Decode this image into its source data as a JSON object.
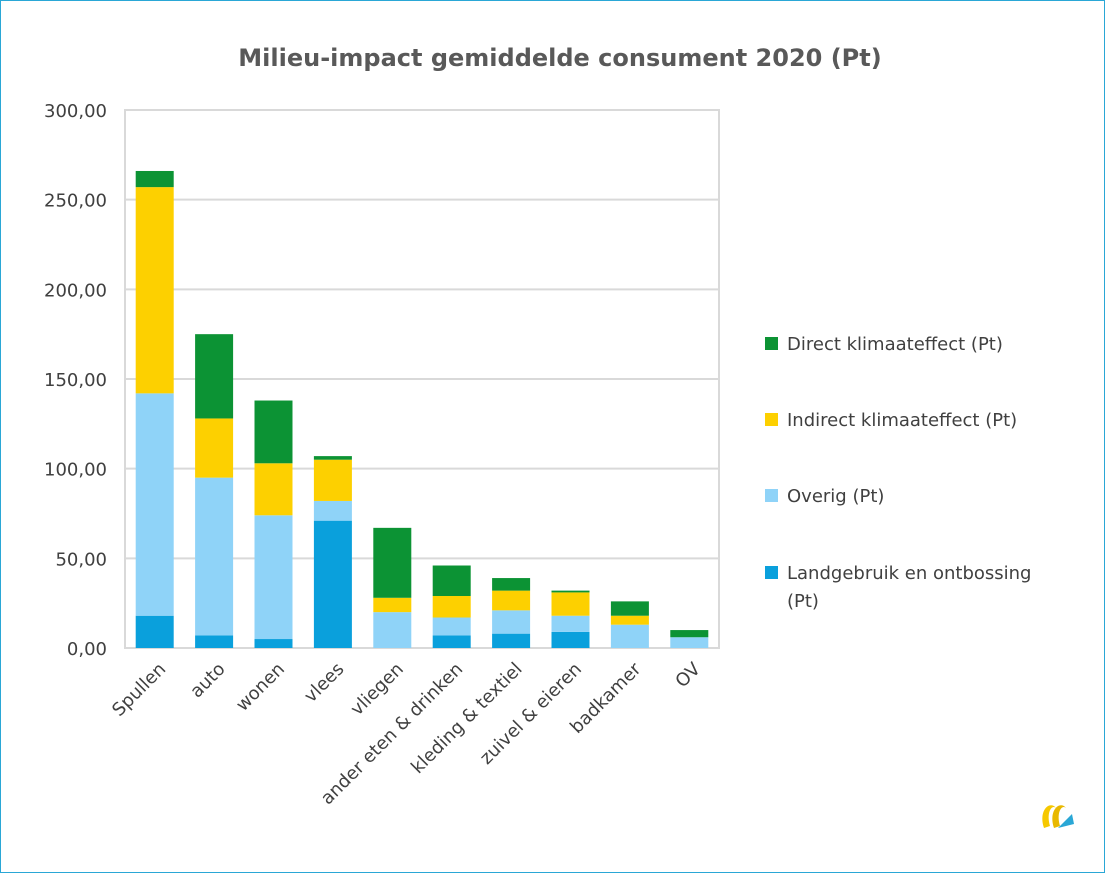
{
  "chart_data": {
    "type": "bar",
    "stacked": true,
    "title": "Milieu-impact gemiddelde consument 2020 (Pt)",
    "xlabel": "",
    "ylabel": "",
    "ylim": [
      0,
      300
    ],
    "yticks": [
      "0,00",
      "50,00",
      "100,00",
      "150,00",
      "200,00",
      "250,00",
      "300,00"
    ],
    "grid": true,
    "legend_position": "right",
    "categories": [
      "Spullen",
      "auto",
      "wonen",
      "vlees",
      "vliegen",
      "ander eten & drinken",
      "kleding & textiel",
      "zuivel & eieren",
      "badkamer",
      "OV"
    ],
    "series": [
      {
        "name": "Landgebruik en ontbossing (Pt)",
        "color": "#0aa0dc",
        "values": [
          18,
          7,
          5,
          71,
          0,
          7,
          8,
          9,
          0,
          0
        ]
      },
      {
        "name": "Overig (Pt)",
        "color": "#8fd3f8",
        "values": [
          124,
          88,
          69,
          11,
          20,
          10,
          13,
          9,
          13,
          6
        ]
      },
      {
        "name": "Indirect klimaateffect (Pt)",
        "color": "#fdd000",
        "values": [
          115,
          33,
          29,
          23,
          8,
          12,
          11,
          13,
          5,
          0
        ]
      },
      {
        "name": "Direct klimaateffect (Pt)",
        "color": "#0c9334",
        "values": [
          9,
          47,
          35,
          2,
          39,
          17,
          7,
          1,
          8,
          4
        ]
      }
    ],
    "legend": [
      {
        "label": "Direct klimaateffect (Pt)",
        "color": "#0c9334"
      },
      {
        "label": "Indirect klimaateffect (Pt)",
        "color": "#fdd000"
      },
      {
        "label": "Overig (Pt)",
        "color": "#8fd3f8"
      },
      {
        "label": "Landgebruik en ontbossing (Pt)",
        "color": "#0aa0dc"
      }
    ],
    "colors": {
      "grid": "#d9d9d9",
      "axis": "#bfbfbf",
      "frame": "#2aa7d6"
    }
  },
  "logo": {
    "name": "brand-logo-icon"
  }
}
